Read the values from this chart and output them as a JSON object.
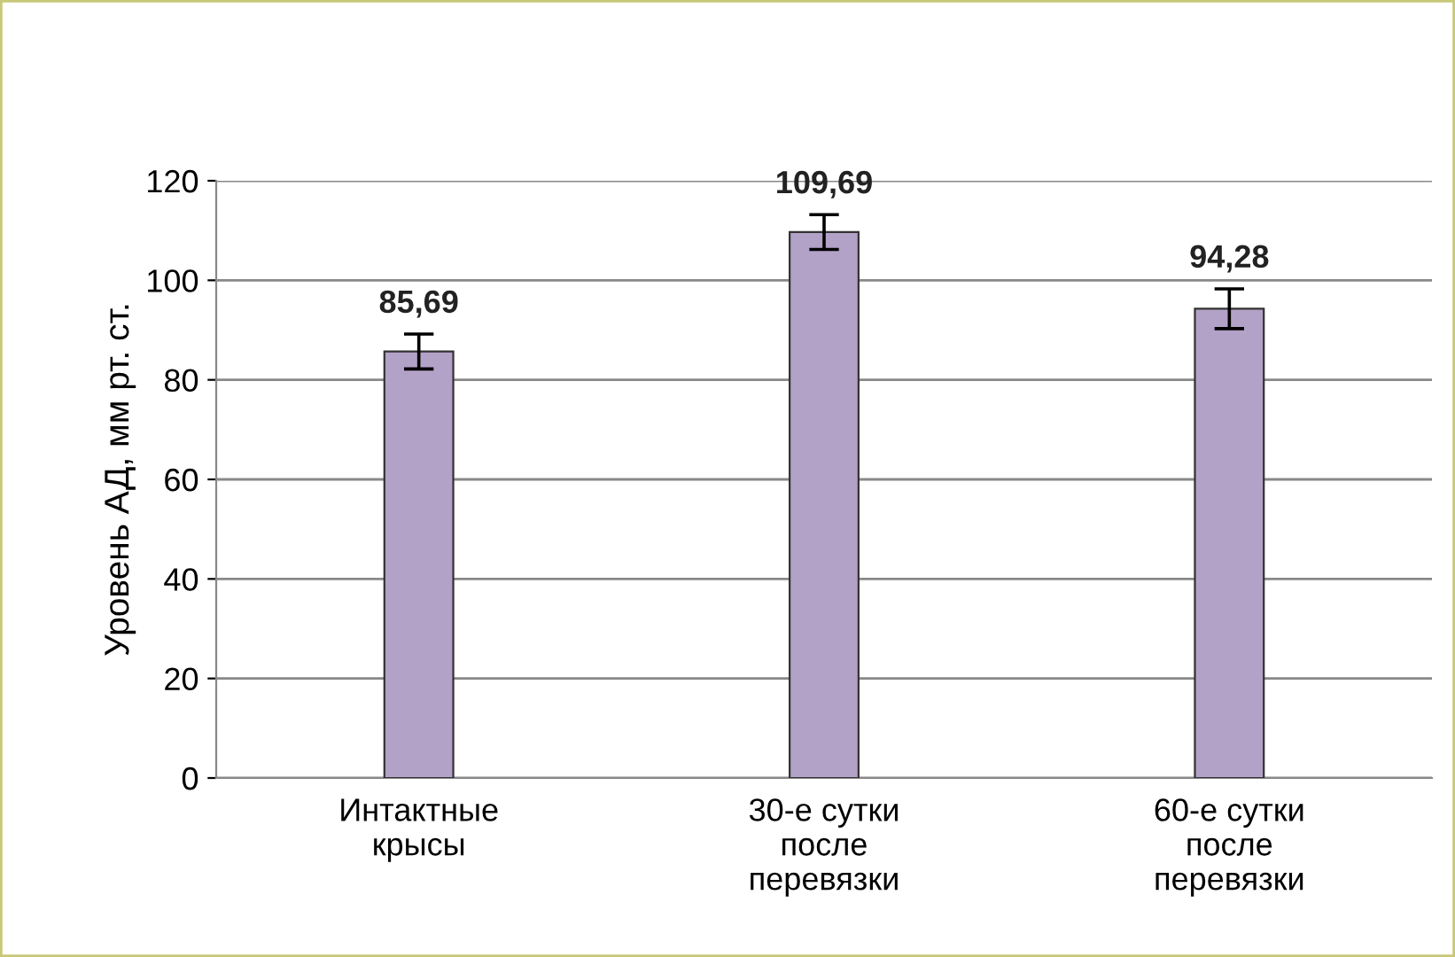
{
  "chart_data": {
    "type": "bar",
    "categories": [
      "Интактные\nкрысы",
      "30-е сутки\nпосле\nперевязки",
      "60-е сутки\nпосле\nперевязки"
    ],
    "values": [
      85.69,
      109.69,
      94.28
    ],
    "value_labels": [
      "85,69",
      "109,69",
      "94,28"
    ],
    "errors": [
      3.5,
      3.5,
      4
    ],
    "color": "#b3a2c7",
    "ylabel": "Уровень АД, мм рт. ст.",
    "ylim": [
      0,
      120
    ],
    "yticks": [
      0,
      20,
      40,
      60,
      80,
      100,
      120
    ],
    "grid": "y",
    "legend": false
  }
}
